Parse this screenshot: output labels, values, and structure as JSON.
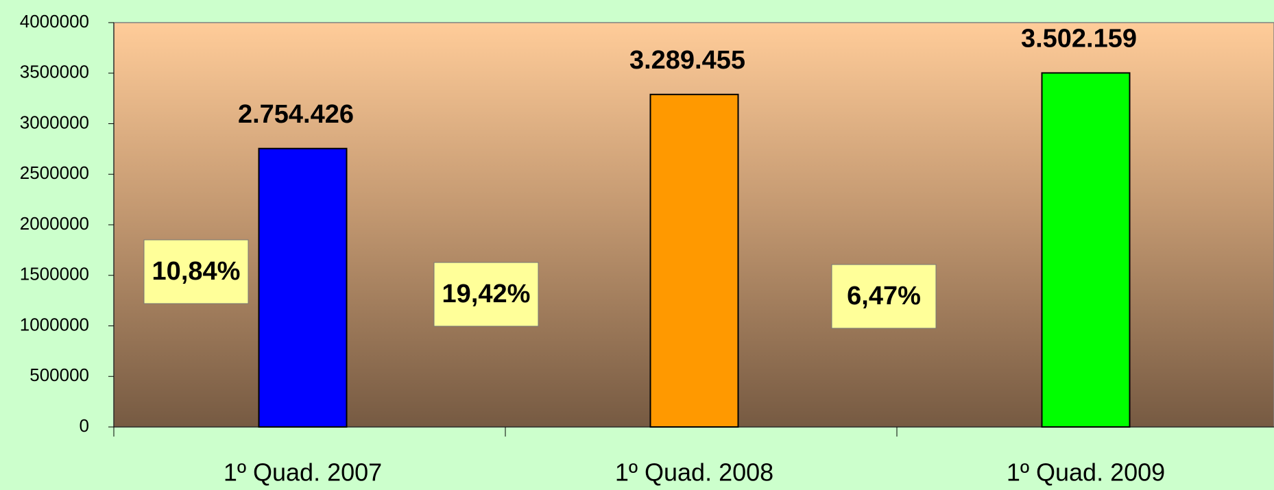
{
  "chart_data": {
    "type": "bar",
    "categories": [
      "1º Quad. 2007",
      "1º Quad. 2008",
      "1º Quad. 2009"
    ],
    "values": [
      2754426,
      3289455,
      3502159
    ],
    "value_labels": [
      "2.754.426",
      "3.289.455",
      "3.502.159"
    ],
    "colors": [
      "#0000ff",
      "#ff9900",
      "#00ff00"
    ],
    "ylim": [
      0,
      4000000
    ],
    "yticks": [
      0,
      500000,
      1000000,
      1500000,
      2000000,
      2500000,
      3000000,
      3500000,
      4000000
    ],
    "annotations": [
      "10,84%",
      "19,42%",
      "6,47%"
    ]
  }
}
